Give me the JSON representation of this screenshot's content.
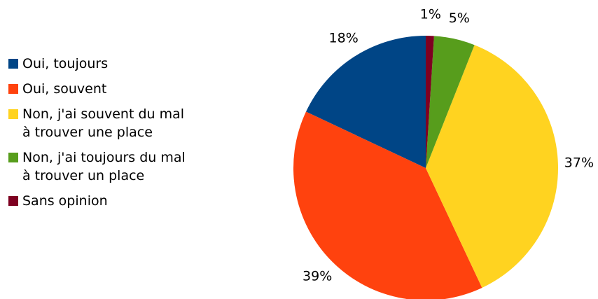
{
  "chart_data": {
    "type": "pie",
    "categories": [
      "Oui, toujours",
      "Oui, souvent",
      "Non, j'ai souvent du mal à trouver une place",
      "Non, j'ai toujours du mal à trouver un place",
      "Sans opinion"
    ],
    "values": [
      18,
      39,
      37,
      5,
      1
    ],
    "value_labels": [
      "18%",
      "39%",
      "37%",
      "5%",
      "1%"
    ],
    "colors": [
      "#004586",
      "#ff420e",
      "#ffd320",
      "#579d1c",
      "#7e0021"
    ],
    "legend": "left"
  }
}
